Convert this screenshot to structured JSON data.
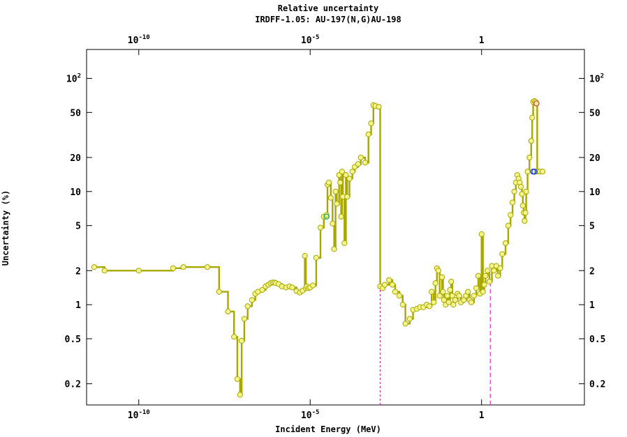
{
  "chart_data": {
    "type": "line",
    "title": "Relative uncertainty",
    "subtitle": "IRDFF-1.05: AU-197(N,G)AU-198",
    "xlabel": "Incident Energy (MeV)",
    "ylabel": "Uncertainty (%)",
    "x_scale": "log",
    "y_scale": "log",
    "xlim": [
      3e-12,
      1000
    ],
    "ylim": [
      0.13,
      180
    ],
    "x_ticks": [
      {
        "value": 1e-10,
        "base": "10",
        "exp": "-10"
      },
      {
        "value": 1e-05,
        "base": "10",
        "exp": "-5"
      },
      {
        "value": 1,
        "base": "1",
        "exp": ""
      }
    ],
    "y_ticks": [
      {
        "value": 100,
        "base": "10",
        "exp": "2"
      },
      {
        "value": 50,
        "base": "50",
        "exp": ""
      },
      {
        "value": 20,
        "base": "20",
        "exp": ""
      },
      {
        "value": 10,
        "base": "10",
        "exp": ""
      },
      {
        "value": 5,
        "base": "5",
        "exp": ""
      },
      {
        "value": 2,
        "base": "2",
        "exp": ""
      },
      {
        "value": 1,
        "base": "1",
        "exp": ""
      },
      {
        "value": 0.5,
        "base": "0.5",
        "exp": ""
      },
      {
        "value": 0.2,
        "base": "0.2",
        "exp": ""
      }
    ],
    "grid": false,
    "legend": "none",
    "series": [
      {
        "style": "step",
        "color": "#a8a800",
        "marker_fill": "#f4f48c",
        "points": [
          [
            5e-12,
            2.15
          ],
          [
            1e-11,
            2.0
          ],
          [
            1e-10,
            2.0
          ],
          [
            1e-09,
            2.1
          ],
          [
            2e-09,
            2.15
          ],
          [
            1e-08,
            2.15
          ],
          [
            2.2e-08,
            1.3
          ],
          [
            4e-08,
            0.87
          ],
          [
            6e-08,
            0.52
          ],
          [
            7.5e-08,
            0.22
          ],
          [
            9e-08,
            0.16
          ],
          [
            1e-07,
            0.48
          ],
          [
            1.2e-07,
            0.75
          ],
          [
            1.5e-07,
            0.97
          ],
          [
            2e-07,
            1.1
          ],
          [
            2.5e-07,
            1.25
          ],
          [
            3e-07,
            1.3
          ],
          [
            4e-07,
            1.35
          ],
          [
            5e-07,
            1.45
          ],
          [
            6e-07,
            1.5
          ],
          [
            7e-07,
            1.55
          ],
          [
            8e-07,
            1.57
          ],
          [
            9e-07,
            1.57
          ],
          [
            1e-06,
            1.55
          ],
          [
            1.2e-06,
            1.52
          ],
          [
            1.5e-06,
            1.45
          ],
          [
            2e-06,
            1.42
          ],
          [
            2.5e-06,
            1.45
          ],
          [
            3e-06,
            1.42
          ],
          [
            4e-06,
            1.32
          ],
          [
            5e-06,
            1.28
          ],
          [
            6e-06,
            1.33
          ],
          [
            7e-06,
            2.7
          ],
          [
            7.5e-06,
            1.4
          ],
          [
            8e-06,
            1.45
          ],
          [
            9e-06,
            1.4
          ],
          [
            1e-05,
            1.42
          ],
          [
            1.2e-05,
            1.48
          ],
          [
            1.5e-05,
            2.6
          ],
          [
            2e-05,
            4.8
          ],
          [
            2.5e-05,
            6.0
          ],
          [
            3e-05,
            6.2
          ],
          [
            3.2e-05,
            11.5
          ],
          [
            3.5e-05,
            12.0
          ],
          [
            4e-05,
            8.8
          ],
          [
            4.5e-05,
            5.2
          ],
          [
            5e-05,
            3.1
          ],
          [
            5.5e-05,
            10.0
          ],
          [
            6e-05,
            7.8
          ],
          [
            7e-05,
            14.0
          ],
          [
            7.5e-05,
            12.0
          ],
          [
            8e-05,
            6.0
          ],
          [
            8.5e-05,
            15.0
          ],
          [
            9e-05,
            9.0
          ],
          [
            0.0001,
            3.5
          ],
          [
            0.00011,
            14.0
          ],
          [
            0.00012,
            9.0
          ],
          [
            0.00014,
            13.0
          ],
          [
            0.00017,
            15.0
          ],
          [
            0.0002,
            16.5
          ],
          [
            0.00025,
            17.5
          ],
          [
            0.0003,
            20.0
          ],
          [
            0.0004,
            18.0
          ],
          [
            0.0005,
            32.0
          ],
          [
            0.0006,
            40.0
          ],
          [
            0.0007,
            58.0
          ],
          [
            0.0008,
            57.0
          ],
          [
            0.001,
            56.0
          ],
          [
            0.0011,
            1.45
          ],
          [
            0.0013,
            1.4
          ],
          [
            0.0015,
            1.5
          ],
          [
            0.002,
            1.65
          ],
          [
            0.0025,
            1.5
          ],
          [
            0.003,
            1.3
          ],
          [
            0.004,
            1.2
          ],
          [
            0.005,
            1.0
          ],
          [
            0.006,
            0.68
          ],
          [
            0.008,
            0.75
          ],
          [
            0.01,
            0.9
          ],
          [
            0.013,
            0.92
          ],
          [
            0.016,
            0.95
          ],
          [
            0.02,
            0.95
          ],
          [
            0.025,
            1.0
          ],
          [
            0.03,
            0.97
          ],
          [
            0.035,
            1.3
          ],
          [
            0.04,
            1.05
          ],
          [
            0.045,
            1.55
          ],
          [
            0.05,
            2.1
          ],
          [
            0.055,
            2.0
          ],
          [
            0.06,
            1.2
          ],
          [
            0.07,
            1.75
          ],
          [
            0.075,
            1.3
          ],
          [
            0.08,
            1.1
          ],
          [
            0.09,
            1.0
          ],
          [
            0.1,
            1.2
          ],
          [
            0.11,
            1.05
          ],
          [
            0.12,
            1.35
          ],
          [
            0.13,
            1.6
          ],
          [
            0.14,
            1.2
          ],
          [
            0.15,
            1.0
          ],
          [
            0.17,
            1.1
          ],
          [
            0.2,
            1.25
          ],
          [
            0.22,
            1.2
          ],
          [
            0.25,
            1.05
          ],
          [
            0.3,
            1.1
          ],
          [
            0.35,
            1.2
          ],
          [
            0.4,
            1.3
          ],
          [
            0.45,
            1.1
          ],
          [
            0.5,
            1.05
          ],
          [
            0.6,
            1.2
          ],
          [
            0.7,
            1.4
          ],
          [
            0.8,
            1.8
          ],
          [
            0.9,
            1.25
          ],
          [
            1,
            4.2
          ],
          [
            1.1,
            1.3
          ],
          [
            1.2,
            1.5
          ],
          [
            1.3,
            1.8
          ],
          [
            1.5,
            2.0
          ],
          [
            1.7,
            1.6
          ],
          [
            2,
            2.2
          ],
          [
            2.3,
            2.0
          ],
          [
            2.7,
            2.2
          ],
          [
            3,
            1.8
          ],
          [
            3.5,
            2.1
          ],
          [
            4,
            2.8
          ],
          [
            5,
            3.5
          ],
          [
            6,
            5.0
          ],
          [
            7,
            6.2
          ],
          [
            8,
            8.0
          ],
          [
            9,
            10.0
          ],
          [
            10,
            12.0
          ],
          [
            11,
            14.0
          ],
          [
            12,
            13.0
          ],
          [
            13,
            12.0
          ],
          [
            14,
            11.0
          ],
          [
            15,
            9.5
          ],
          [
            16,
            7.5
          ],
          [
            17,
            6.5
          ],
          [
            18,
            5.5
          ],
          [
            19,
            6.5
          ],
          [
            20,
            10.0
          ],
          [
            22,
            15.0
          ],
          [
            25,
            20.0
          ],
          [
            28,
            28.0
          ],
          [
            30,
            45.0
          ],
          [
            32,
            62.0
          ],
          [
            35,
            63.0
          ],
          [
            38,
            62.0
          ],
          [
            40,
            60.0
          ],
          [
            42,
            15.0
          ],
          [
            50,
            15.0
          ],
          [
            60,
            15.0
          ]
        ]
      }
    ],
    "extra_markers": [
      {
        "x": 3e-05,
        "y": 6.0,
        "color": "#22aa66"
      },
      {
        "x": 32,
        "y": 15.0,
        "color": "#2244cc"
      },
      {
        "x": 35,
        "y": 15.0,
        "color": "#2244cc"
      },
      {
        "x": 40,
        "y": 60.0,
        "color": "#dd4466"
      }
    ],
    "vlines": [
      {
        "x": 0.0011,
        "y_top": 1.45,
        "color": "#cc3399",
        "dash": "3,3"
      },
      {
        "x": 1.8,
        "y_top": 1.55,
        "color": "#dd33cc",
        "dash": "6,4"
      }
    ]
  }
}
